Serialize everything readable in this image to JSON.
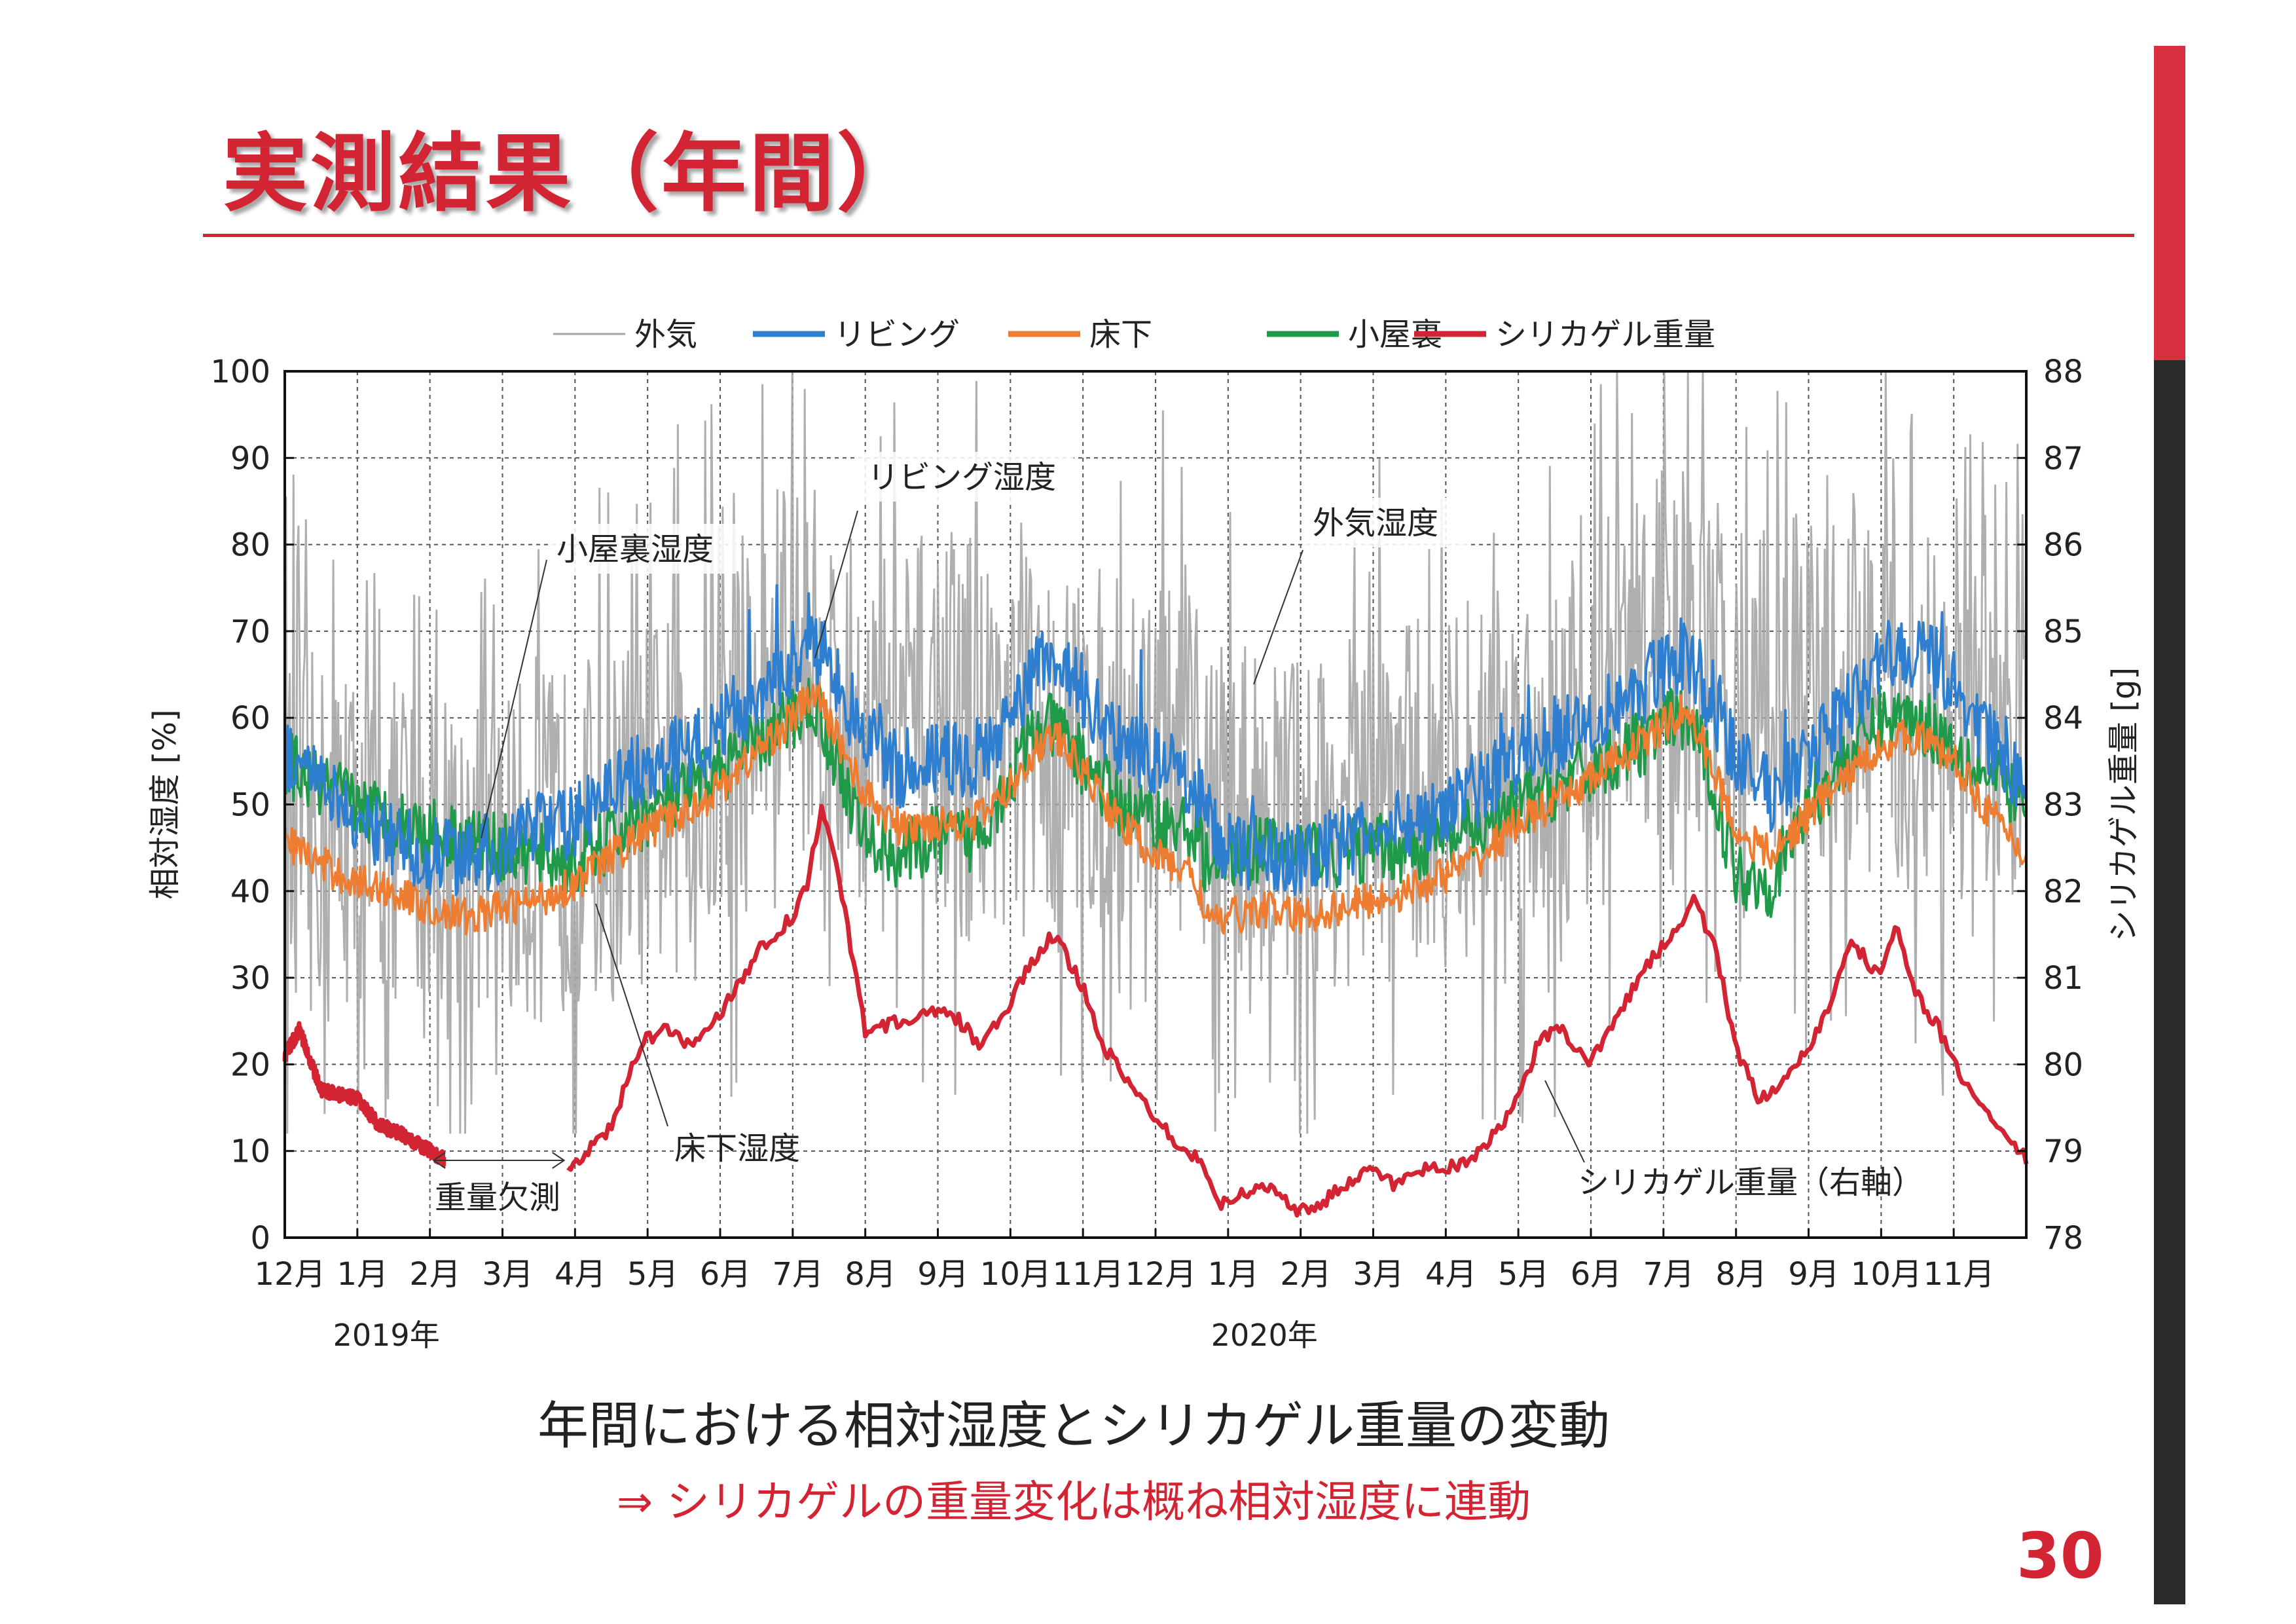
{
  "slide": {
    "title": "実測結果（年間）",
    "caption": "年間における相対湿度とシリカゲル重量の変動",
    "conclusion": "⇒ シリカゲルの重量変化は概ね相対湿度に連動",
    "page_number": "30",
    "accent_color": "#d32433"
  },
  "chart_data": {
    "type": "line",
    "ylabel": "相対湿度 [%]",
    "y2label": "シリカゲル重量 [g]",
    "ylim": [
      0,
      100
    ],
    "y2lim": [
      78,
      88
    ],
    "yticks": [
      "0",
      "10",
      "20",
      "30",
      "40",
      "50",
      "60",
      "70",
      "80",
      "90",
      "100"
    ],
    "y2ticks": [
      "78",
      "79",
      "80",
      "81",
      "82",
      "83",
      "84",
      "85",
      "86",
      "87",
      "88"
    ],
    "xticks": [
      "12月",
      "1月",
      "2月",
      "3月",
      "4月",
      "5月",
      "6月",
      "7月",
      "8月",
      "9月",
      "10月",
      "11月",
      "12月",
      "1月",
      "2月",
      "3月",
      "4月",
      "5月",
      "6月",
      "7月",
      "8月",
      "9月",
      "10月",
      "11月"
    ],
    "year_labels": [
      {
        "text": "2019年",
        "month_index": 1.4
      },
      {
        "text": "2020年",
        "month_index": 13.5
      }
    ],
    "x_unit": "month index from Dec 2018",
    "xlim": [
      0,
      24
    ],
    "grid": true,
    "legend_position": "top",
    "series": [
      {
        "name": "外気",
        "color": "#a6a6a6",
        "axis": "left",
        "x": [
          0,
          1,
          2,
          3,
          4,
          5,
          6,
          7,
          8,
          9,
          10,
          11,
          12,
          13,
          14,
          15,
          16,
          17,
          18,
          19,
          20,
          21,
          22,
          23,
          24
        ],
        "center": [
          48,
          46,
          45,
          44,
          46,
          50,
          55,
          68,
          58,
          60,
          58,
          56,
          57,
          50,
          48,
          50,
          52,
          55,
          60,
          70,
          62,
          63,
          62,
          57,
          55
        ],
        "amplitude": [
          30,
          28,
          26,
          28,
          30,
          30,
          32,
          32,
          30,
          32,
          32,
          30,
          30,
          28,
          28,
          30,
          30,
          32,
          32,
          30,
          30,
          30,
          32,
          30,
          28
        ]
      },
      {
        "name": "リビング",
        "color": "#2f7fd0",
        "axis": "left",
        "x": [
          0,
          0.5,
          1,
          1.5,
          2,
          2.5,
          3,
          3.5,
          4,
          4.5,
          5,
          5.5,
          6,
          6.5,
          7,
          7.3,
          7.6,
          8,
          8.5,
          9,
          9.5,
          10,
          10.3,
          10.6,
          11,
          11.5,
          12,
          12.5,
          12.8,
          13,
          13.5,
          14,
          14.5,
          15,
          15.5,
          16,
          16.5,
          17,
          17.5,
          18,
          18.5,
          19,
          19.3,
          19.6,
          20,
          20.5,
          21,
          21.5,
          22,
          22.5,
          23,
          23.5,
          24
        ],
        "y": [
          56,
          52,
          47,
          46,
          44,
          44,
          45,
          47,
          48,
          52,
          55,
          56,
          59,
          63,
          67,
          69,
          64,
          58,
          54,
          56,
          55,
          60,
          64,
          68,
          63,
          57,
          55,
          53,
          47,
          45,
          44,
          44,
          45,
          47,
          48,
          50,
          52,
          56,
          58,
          60,
          62,
          66,
          68,
          63,
          55,
          51,
          56,
          60,
          67,
          68,
          64,
          57,
          52
        ]
      },
      {
        "name": "床下",
        "color": "#ee7d31",
        "axis": "left",
        "x": [
          0,
          0.5,
          1,
          1.5,
          2,
          2.5,
          3,
          3.5,
          4,
          4.5,
          5,
          5.5,
          6,
          6.5,
          7,
          7.3,
          7.6,
          8,
          8.5,
          9,
          9.5,
          10,
          10.3,
          10.6,
          11,
          11.5,
          12,
          12.5,
          12.8,
          13,
          13.5,
          14,
          14.5,
          15,
          15.5,
          16,
          16.5,
          17,
          17.5,
          18,
          18.5,
          19,
          19.3,
          19.6,
          20,
          20.5,
          21,
          21.5,
          22,
          22.5,
          23,
          23.5,
          24
        ],
        "y": [
          46,
          43,
          41,
          40,
          38,
          37,
          38,
          39,
          41,
          44,
          47,
          49,
          52,
          56,
          60,
          63,
          58,
          51,
          47,
          48,
          48,
          52,
          56,
          58,
          54,
          48,
          44,
          42,
          36,
          37,
          38,
          37,
          38,
          39,
          40,
          42,
          44,
          48,
          50,
          53,
          56,
          59,
          61,
          56,
          47,
          44,
          49,
          53,
          57,
          58,
          55,
          49,
          44
        ]
      },
      {
        "name": "小屋裏",
        "color": "#1e9a48",
        "axis": "left",
        "x": [
          0,
          0.5,
          1,
          1.5,
          2,
          2.5,
          3,
          3.5,
          4,
          4.5,
          5,
          5.5,
          6,
          6.5,
          7,
          7.3,
          7.6,
          8,
          8.5,
          9,
          9.5,
          10,
          10.3,
          10.6,
          11,
          11.5,
          12,
          12.5,
          12.8,
          13,
          13.5,
          14,
          14.5,
          15,
          15.5,
          16,
          16.5,
          17,
          17.5,
          18,
          18.5,
          19,
          19.3,
          19.6,
          20,
          20.5,
          21,
          21.5,
          22,
          22.5,
          23,
          23.5,
          24
        ],
        "y": [
          55,
          52,
          50,
          48,
          47,
          46,
          45,
          44,
          43,
          46,
          49,
          51,
          54,
          57,
          60,
          62,
          55,
          46,
          44,
          46,
          46,
          53,
          58,
          59,
          55,
          50,
          48,
          47,
          42,
          44,
          45,
          45,
          44,
          45,
          45,
          46,
          47,
          50,
          52,
          54,
          56,
          59,
          60,
          55,
          42,
          41,
          50,
          55,
          60,
          60,
          57,
          53,
          50
        ]
      },
      {
        "name": "シリカゲル重量",
        "color": "#d32433",
        "axis": "right",
        "x": [
          0,
          0.2,
          0.5,
          1,
          1.3,
          1.6,
          2,
          2.2,
          3.9,
          4.2,
          4.5,
          4.8,
          5,
          5.3,
          5.6,
          6,
          6.3,
          6.6,
          7,
          7.2,
          7.4,
          7.6,
          8,
          8.5,
          9,
          9.3,
          9.6,
          10,
          10.3,
          10.6,
          11,
          11.3,
          11.6,
          12,
          12.3,
          12.6,
          12.9,
          13.2,
          13.6,
          14,
          14.3,
          14.6,
          15,
          15.3,
          15.6,
          16,
          16.3,
          16.6,
          17,
          17.3,
          17.6,
          18,
          18.3,
          18.6,
          19,
          19.2,
          19.4,
          19.7,
          20,
          20.3,
          20.6,
          21,
          21.3,
          21.6,
          22,
          22.2,
          22.5,
          22.8,
          23,
          23.3,
          23.6,
          24
        ],
        "y": [
          80.1,
          80.4,
          79.7,
          79.6,
          79.3,
          79.2,
          79.0,
          78.9,
          78.8,
          79.0,
          79.3,
          80.0,
          80.3,
          80.4,
          80.2,
          80.6,
          81.0,
          81.4,
          81.7,
          82.1,
          83.0,
          82.3,
          80.4,
          80.5,
          80.6,
          80.5,
          80.2,
          80.7,
          81.2,
          81.5,
          80.9,
          80.2,
          79.8,
          79.4,
          79.1,
          78.9,
          78.4,
          78.5,
          78.6,
          78.3,
          78.4,
          78.6,
          78.8,
          78.6,
          78.8,
          78.8,
          78.9,
          79.1,
          79.6,
          80.3,
          80.4,
          80.0,
          80.5,
          80.9,
          81.4,
          81.6,
          81.9,
          81.4,
          80.2,
          79.6,
          79.7,
          80.2,
          80.7,
          81.4,
          81.0,
          81.6,
          80.8,
          80.4,
          80.0,
          79.6,
          79.3,
          78.9
        ]
      }
    ],
    "annotations": [
      {
        "text": "リビング湿度"
      },
      {
        "text": "小屋裏湿度"
      },
      {
        "text": "外気湿度"
      },
      {
        "text": "床下湿度"
      },
      {
        "text": "重量欠測"
      },
      {
        "text": "シリカゲル重量（右軸）"
      }
    ]
  }
}
